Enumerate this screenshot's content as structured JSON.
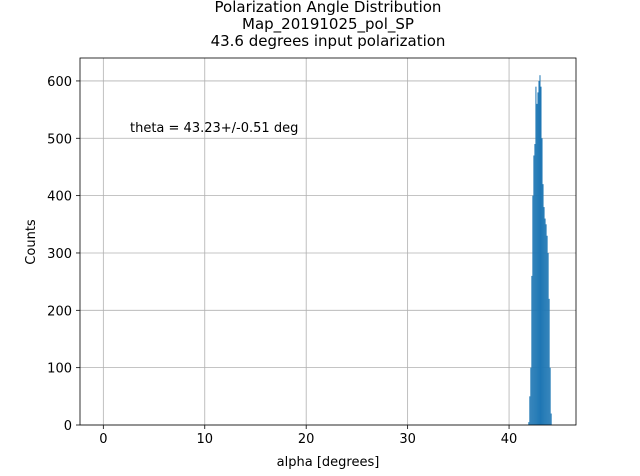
{
  "chart_data": {
    "type": "histogram",
    "title": [
      "Polarization Angle Distribution",
      "Map_20191025_pol_SP",
      "43.6 degrees input polarization"
    ],
    "annotation": "theta = 43.23+/-0.51 deg",
    "annotation_color": "#0000ff",
    "xlabel": "alpha [degrees]",
    "ylabel": "Counts",
    "bins": [
      41.9,
      42.0,
      42.1,
      42.2,
      42.3,
      42.4,
      42.5,
      42.6,
      42.7,
      42.8,
      42.9,
      43.0,
      43.1,
      43.2,
      43.3,
      43.4,
      43.5,
      43.6,
      43.7,
      43.8,
      43.9,
      44.0,
      44.1,
      44.2
    ],
    "values": [
      5,
      50,
      100,
      260,
      400,
      470,
      490,
      590,
      560,
      580,
      600,
      610,
      590,
      500,
      420,
      380,
      360,
      350,
      330,
      300,
      220,
      100,
      20
    ],
    "color": "#1f77b4",
    "xlim": [
      -2.3,
      46.6
    ],
    "ylim": [
      0,
      640
    ],
    "xticks": [
      0,
      10,
      20,
      30,
      40
    ],
    "yticks": [
      0,
      100,
      200,
      300,
      400,
      500,
      600
    ],
    "grid": true
  }
}
